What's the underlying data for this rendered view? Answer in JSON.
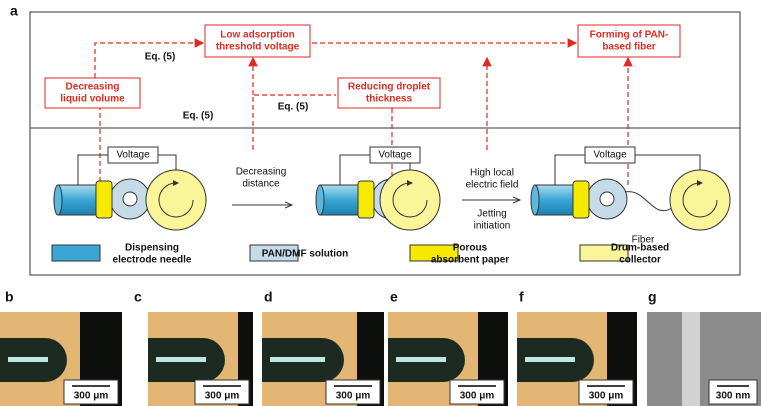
{
  "panel_labels": [
    "a",
    "b",
    "c",
    "d",
    "e",
    "f",
    "g"
  ],
  "flow_boxes": [
    {
      "lines": [
        "Low adsorption",
        "threshold voltage"
      ]
    },
    {
      "lines": [
        "Forming of PAN-",
        "based fiber"
      ]
    },
    {
      "lines": [
        "Decreasing",
        "liquid volume"
      ]
    },
    {
      "lines": [
        "Reducing droplet",
        "thickness"
      ]
    }
  ],
  "equation_labels": [
    "Eq. (5)",
    "Eq. (5)",
    "Eq. (5)"
  ],
  "voltage_labels": [
    "Voltage",
    "Voltage",
    "Voltage"
  ],
  "step_labels": [
    {
      "lines": [
        "Decreasing",
        "distance"
      ]
    },
    {
      "lines": [
        "High local",
        "electric field"
      ]
    },
    {
      "lines": [
        "Jetting",
        "initiation"
      ]
    }
  ],
  "fiber_label": "Fiber",
  "legend": [
    {
      "lines": [
        "Dispensing",
        "electrode needle"
      ]
    },
    {
      "lines": [
        "PAN/DMF solution"
      ]
    },
    {
      "lines": [
        "Porous",
        "absorbent paper"
      ]
    },
    {
      "lines": [
        "Drum-based",
        "collector"
      ]
    }
  ],
  "scale_bars": [
    "300 μm",
    "300 μm",
    "300 μm",
    "300 μm",
    "300 μm",
    "300 nm"
  ]
}
